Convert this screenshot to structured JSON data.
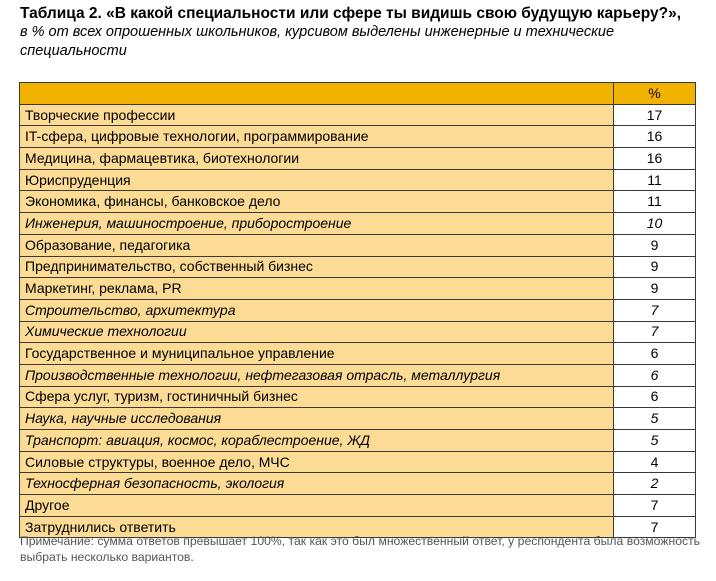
{
  "title": "Таблица 2. «В какой специальности или сфере ты видишь свою будущую карьеру?»,",
  "subtitle": "в % от всех опрошенных школьников, курсивом выделены инженерные и технические специальности",
  "table": {
    "header_label": "",
    "header_value": "%",
    "rows": [
      {
        "label": "Творческие профессии",
        "value": "17",
        "italic": false
      },
      {
        "label": "IT-сфера, цифровые технологии, программирование",
        "value": "16",
        "italic": false
      },
      {
        "label": "Медицина, фармацевтика, биотехнологии",
        "value": "16",
        "italic": false
      },
      {
        "label": "Юриспруденция",
        "value": "11",
        "italic": false
      },
      {
        "label": "Экономика, финансы, банковское дело",
        "value": "11",
        "italic": false
      },
      {
        "label": "Инженерия, машиностроение, приборостроение",
        "value": "10",
        "italic": true
      },
      {
        "label": "Образование, педагогика",
        "value": "9",
        "italic": false
      },
      {
        "label": "Предпринимательство, собственный бизнес",
        "value": "9",
        "italic": false
      },
      {
        "label": "Маркетинг, реклама, PR",
        "value": "9",
        "italic": false
      },
      {
        "label": "Строительство, архитектура",
        "value": "7",
        "italic": true
      },
      {
        "label": "Химические технологии",
        "value": "7",
        "italic": true
      },
      {
        "label": "Государственное и муниципальное управление",
        "value": "6",
        "italic": false
      },
      {
        "label": "Производственные технологии, нефтегазовая отрасль, металлургия",
        "value": "6",
        "italic": true
      },
      {
        "label": "Сфера услуг, туризм, гостиничный бизнес",
        "value": "6",
        "italic": false
      },
      {
        "label": "Наука, научные исследования",
        "value": "5",
        "italic": true
      },
      {
        "label": "Транспорт: авиация, космос, кораблестроение, ЖД",
        "value": "5",
        "italic": true
      },
      {
        "label": "Силовые структуры, военное дело, МЧС",
        "value": "4",
        "italic": false
      },
      {
        "label": "Техносферная безопасность, экология",
        "value": "2",
        "italic": true
      },
      {
        "label": "Другое",
        "value": "7",
        "italic": false
      },
      {
        "label": "Затруднились ответить",
        "value": "7",
        "italic": false
      }
    ]
  },
  "note": "Примечание: сумма ответов превышает 100%, так как это был множественный ответ, у респондента была возможность выбрать несколько вариантов.",
  "colors": {
    "header_fill": "#f2b200",
    "label_fill": "#fcdb95",
    "value_fill": "#ffffff",
    "border": "#3a3a3a"
  }
}
